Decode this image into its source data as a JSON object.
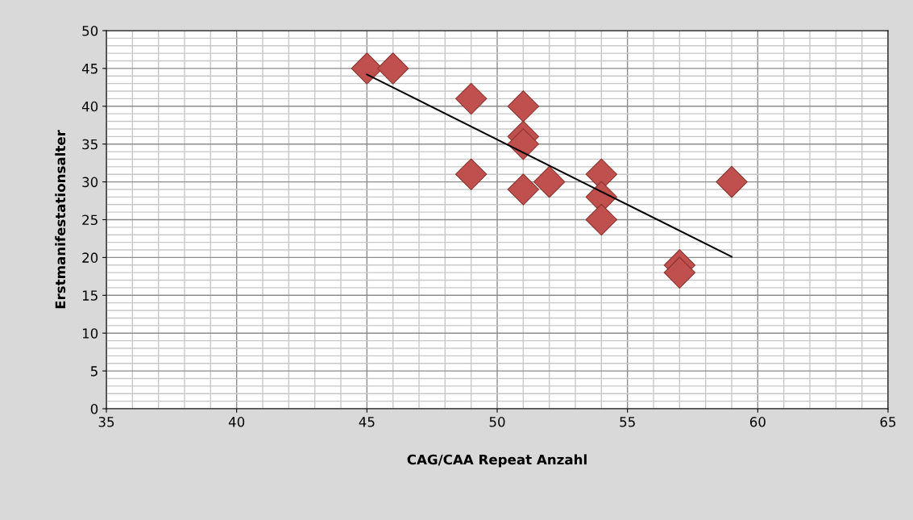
{
  "chart_data": {
    "type": "scatter",
    "xlabel": "CAG/CAA Repeat Anzahl",
    "ylabel": "Erstmanifestationsalter",
    "series": [
      {
        "color": "#c0504d",
        "marker": "diamond",
        "x": [
          45,
          46,
          49,
          49,
          51,
          51,
          51,
          51,
          52,
          54,
          54,
          54,
          57,
          57,
          59
        ],
        "values": [
          45,
          45,
          41,
          31,
          40,
          36,
          35,
          29,
          30,
          31,
          28,
          25,
          19,
          18,
          30
        ]
      },
      {
        "type": "line",
        "color": "#000000",
        "marker": "none",
        "x": [
          45,
          59
        ],
        "values": [
          44.2,
          20.1
        ]
      }
    ],
    "xlim": [
      35,
      65
    ],
    "xticks": [
      35,
      40,
      45,
      50,
      55,
      60,
      65
    ],
    "ylim": [
      0,
      50
    ],
    "yticks": [
      0,
      5,
      10,
      15,
      20,
      25,
      30,
      35,
      40,
      45,
      50
    ],
    "grid": true,
    "legend": false
  }
}
